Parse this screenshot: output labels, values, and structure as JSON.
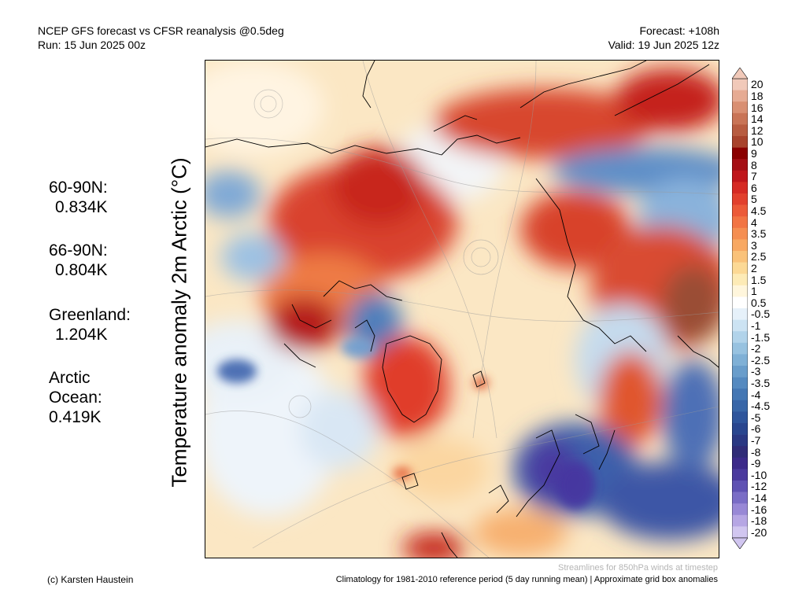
{
  "header": {
    "title": "NCEP GFS forecast vs CFSR reanalysis @0.5deg",
    "run": "Run: 15 Jun 2025 00z",
    "forecast": "Forecast: +108h",
    "valid": "Valid: 19 Jun 2025 12z"
  },
  "ylabel": "Temperature anomaly 2m Arctic (°C)",
  "stats": [
    {
      "label": "60-90N:",
      "value": "0.834K"
    },
    {
      "label": "66-90N:",
      "value": "0.804K"
    },
    {
      "label": "Greenland:",
      "value": "1.204K"
    },
    {
      "label": "Arctic Ocean:",
      "value": "0.419K"
    }
  ],
  "colorbar": {
    "levels": [
      "20",
      "18",
      "16",
      "14",
      "12",
      "10",
      "9",
      "8",
      "7",
      "6",
      "5",
      "4.5",
      "4",
      "3.5",
      "3",
      "2.5",
      "2",
      "1.5",
      "1",
      "0.5",
      "-0.5",
      "-1",
      "-1.5",
      "-2",
      "-2.5",
      "-3",
      "-3.5",
      "-4",
      "-4.5",
      "-5",
      "-6",
      "-7",
      "-8",
      "-9",
      "-10",
      "-12",
      "-14",
      "-16",
      "-18",
      "-20"
    ],
    "colors": [
      "#f1c9b9",
      "#e6ab93",
      "#d98f72",
      "#c97456",
      "#b85c40",
      "#a8432c",
      "#8b0000",
      "#a50f15",
      "#c0161b",
      "#d62a24",
      "#e2402d",
      "#ec5a38",
      "#f27443",
      "#f58e51",
      "#f8a862",
      "#fac279",
      "#fcd995",
      "#fdebb6",
      "#fff6dc",
      "#ffffff",
      "#e6f1fa",
      "#cce3f3",
      "#b1d3ea",
      "#97c2e0",
      "#7fb0d6",
      "#699dcb",
      "#558ac0",
      "#4477b4",
      "#3866a8",
      "#2e559c",
      "#29468f",
      "#2a3883",
      "#302c78",
      "#3c2a8a",
      "#4b3a9e",
      "#5f52b3",
      "#7a6dc6",
      "#9888d6",
      "#b6a6e4",
      "#d1c6f0"
    ]
  },
  "footer": {
    "credit": "(c) Karsten Haustein",
    "note": "Streamlines for 850hPa winds at timestep",
    "climatology": "Climatology for 1981-2010 reference period (5 day running mean) | Approximate grid box anomalies"
  }
}
